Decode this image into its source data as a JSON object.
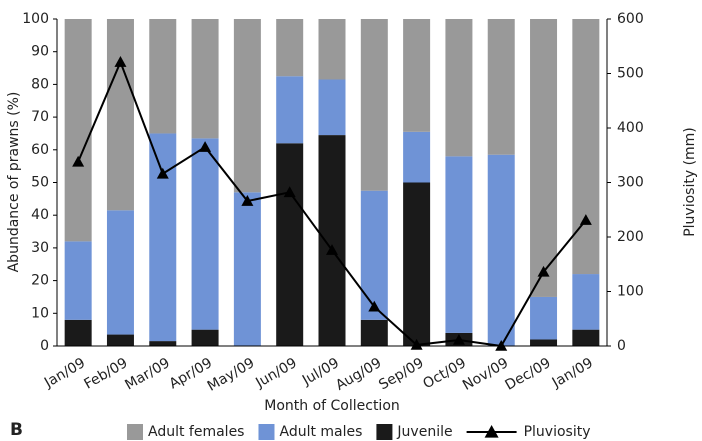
{
  "chart_data": {
    "type": "bar",
    "stacked": true,
    "panel_label": "B",
    "xlabel": "Month of Collection",
    "ylabel": "Abundance of prawns (%)",
    "y2label": "Pluviosity (mm)",
    "categories": [
      "Jan/09",
      "Feb/09",
      "Mar/09",
      "Apr/09",
      "May/09",
      "Jun/09",
      "Jul/09",
      "Aug/09",
      "Sep/09",
      "Oct/09",
      "Nov/09",
      "Dec/09",
      "Jan/09"
    ],
    "series": [
      {
        "name": "Adult females",
        "color": "#999999",
        "values": [
          68,
          58.5,
          35,
          36.5,
          53,
          17.5,
          18.5,
          52.5,
          34.5,
          42,
          41.5,
          85,
          78
        ]
      },
      {
        "name": "Adult males",
        "color": "#6f93d6",
        "values": [
          24,
          38,
          63.5,
          58.5,
          47,
          20.5,
          17,
          39.5,
          15.5,
          54,
          58.5,
          13,
          17
        ]
      },
      {
        "name": "Juvenile",
        "color": "#1a1a1a",
        "values": [
          8,
          3.5,
          1.5,
          5,
          0,
          62,
          64.5,
          8,
          50,
          4,
          0,
          2,
          5
        ]
      },
      {
        "name": "Pluviosity",
        "type": "line",
        "axis": "y2",
        "marker": "triangle",
        "color": "#000000",
        "values": [
          338,
          521,
          316,
          365,
          266,
          282,
          176,
          72,
          2,
          11,
          0,
          136,
          231
        ]
      }
    ],
    "ylim": [
      0,
      100
    ],
    "yticks": [
      0,
      10,
      20,
      30,
      40,
      50,
      60,
      70,
      80,
      90,
      100
    ],
    "y2lim": [
      0,
      600
    ],
    "y2ticks": [
      0,
      100,
      200,
      300,
      400,
      500,
      600
    ],
    "legend": "bottom"
  }
}
